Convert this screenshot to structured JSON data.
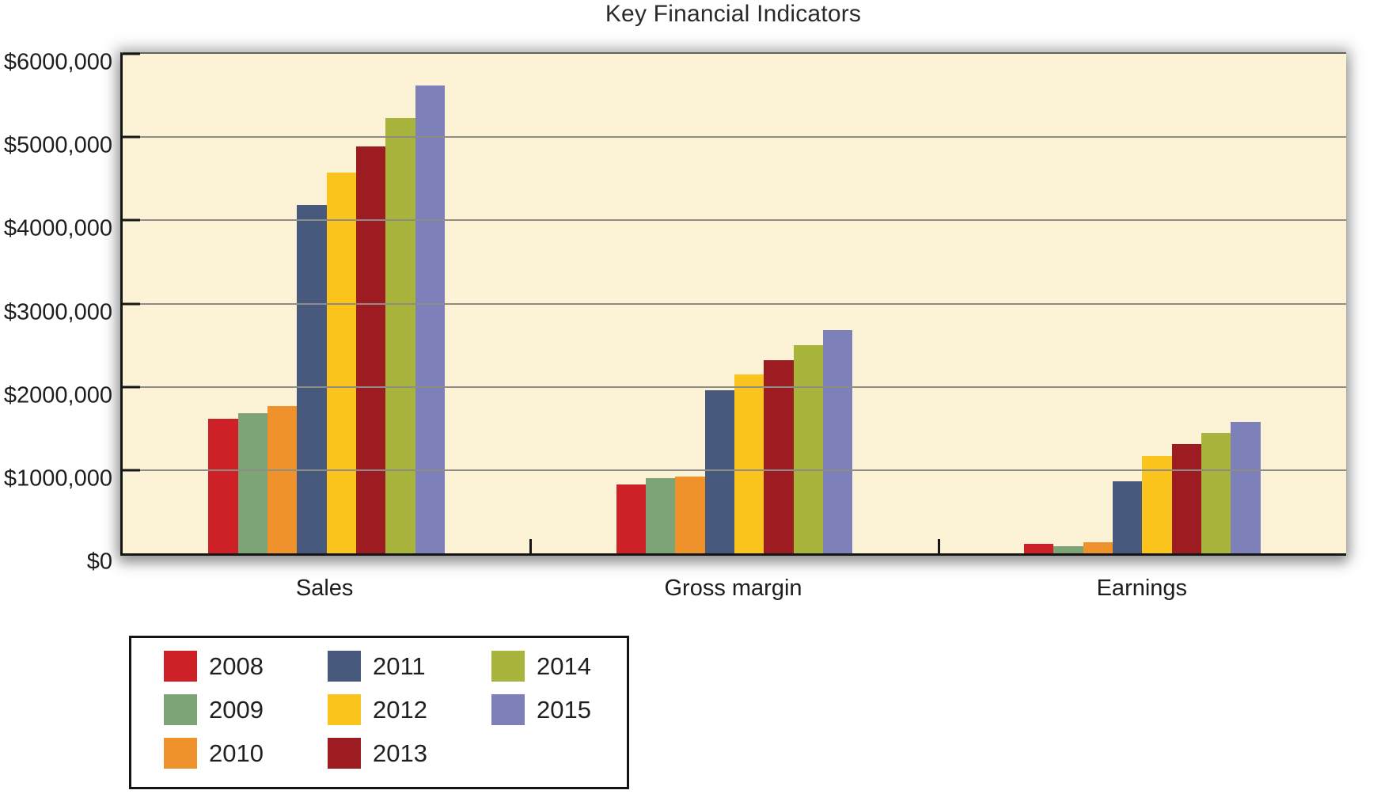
{
  "title": "Key Financial Indicators",
  "colors": {
    "plot_background": "#fcf2d5",
    "gridline": "#8d8d85",
    "axis": "#161616",
    "page_background": "#ffffff",
    "legend_border": "#141414"
  },
  "chart_data": {
    "type": "bar",
    "title": "Key Financial Indicators",
    "categories": [
      "Sales",
      "Gross margin",
      "Earnings"
    ],
    "series": [
      {
        "name": "2008",
        "color": "#ce2127",
        "values": [
          1620000,
          830000,
          110000
        ]
      },
      {
        "name": "2009",
        "color": "#7ca477",
        "values": [
          1680000,
          900000,
          90000
        ]
      },
      {
        "name": "2010",
        "color": "#f0922b",
        "values": [
          1770000,
          920000,
          130000
        ]
      },
      {
        "name": "2011",
        "color": "#48597e",
        "values": [
          4180000,
          1960000,
          870000
        ]
      },
      {
        "name": "2012",
        "color": "#fbc41d",
        "values": [
          4570000,
          2150000,
          1170000
        ]
      },
      {
        "name": "2013",
        "color": "#9d1c22",
        "values": [
          4890000,
          2320000,
          1310000
        ]
      },
      {
        "name": "2014",
        "color": "#a8b43c",
        "values": [
          5230000,
          2500000,
          1450000
        ]
      },
      {
        "name": "2015",
        "color": "#7e81b9",
        "values": [
          5620000,
          2680000,
          1580000
        ]
      }
    ],
    "y_tick_labels": [
      "$6000,000",
      "$5000,000",
      "$4000,000",
      "$3000,000",
      "$2000,000",
      "$1000,000",
      "$0"
    ],
    "ylim": [
      0,
      6000000
    ],
    "xlabel": "",
    "ylabel": "",
    "grid": true,
    "legend_position": "bottom-left",
    "legend_years": [
      "2008",
      "2009",
      "2010",
      "2011",
      "2012",
      "2013",
      "2014",
      "2015"
    ]
  }
}
